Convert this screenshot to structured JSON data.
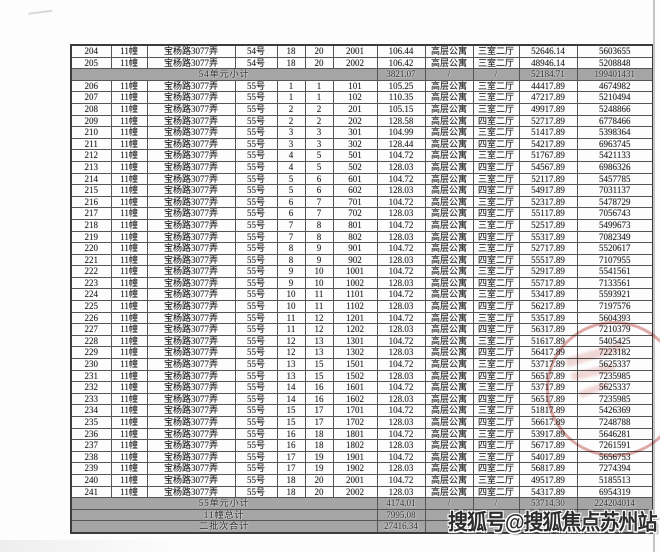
{
  "watermark": "搜狐号@搜狐焦点苏州站",
  "colors": {
    "summary_bg": "#a5a5a5",
    "stamp_red": "#be524a",
    "grid_border": "#555555"
  },
  "table": {
    "rows": [
      {
        "cells": [
          "204",
          "11幢",
          "宝杨路3077弄",
          "54号",
          "18",
          "20",
          "2001",
          "106.44",
          "高层公寓",
          "三室二厅",
          "52646.14",
          "5603655"
        ]
      },
      {
        "cells": [
          "205",
          "11幢",
          "宝杨路3077弄",
          "54号",
          "18",
          "20",
          "2002",
          "106.42",
          "高层公寓",
          "三室二厅",
          "48946.14",
          "5208848"
        ]
      },
      {
        "label": "54单元小计",
        "cells": [
          "3821.07",
          "/",
          "/",
          "52184.71",
          "199401431"
        ]
      },
      {
        "cells": [
          "206",
          "11幢",
          "宝杨路3077弄",
          "55号",
          "1",
          "1",
          "101",
          "105.25",
          "高层公寓",
          "三室二厅",
          "44417.89",
          "4674982"
        ]
      },
      {
        "cells": [
          "207",
          "11幢",
          "宝杨路3077弄",
          "55号",
          "1",
          "1",
          "102",
          "110.35",
          "高层公寓",
          "三室二厅",
          "47217.89",
          "5210494"
        ]
      },
      {
        "cells": [
          "208",
          "11幢",
          "宝杨路3077弄",
          "55号",
          "2",
          "2",
          "201",
          "105.15",
          "高层公寓",
          "三室二厅",
          "49917.89",
          "5248866"
        ]
      },
      {
        "cells": [
          "209",
          "11幢",
          "宝杨路3077弄",
          "55号",
          "2",
          "2",
          "202",
          "128.58",
          "高层公寓",
          "四室二厅",
          "52717.89",
          "6778466"
        ]
      },
      {
        "cells": [
          "210",
          "11幢",
          "宝杨路3077弄",
          "55号",
          "3",
          "3",
          "301",
          "104.99",
          "高层公寓",
          "三室二厅",
          "51417.89",
          "5398364"
        ]
      },
      {
        "cells": [
          "211",
          "11幢",
          "宝杨路3077弄",
          "55号",
          "3",
          "3",
          "302",
          "128.44",
          "高层公寓",
          "四室二厅",
          "54217.89",
          "6963745"
        ]
      },
      {
        "cells": [
          "212",
          "11幢",
          "宝杨路3077弄",
          "55号",
          "4",
          "5",
          "501",
          "104.72",
          "高层公寓",
          "三室二厅",
          "51767.89",
          "5421133"
        ]
      },
      {
        "cells": [
          "213",
          "11幢",
          "宝杨路3077弄",
          "55号",
          "4",
          "5",
          "502",
          "128.03",
          "高层公寓",
          "四室二厅",
          "54567.89",
          "6986326"
        ]
      },
      {
        "cells": [
          "214",
          "11幢",
          "宝杨路3077弄",
          "55号",
          "5",
          "6",
          "601",
          "104.72",
          "高层公寓",
          "三室二厅",
          "52117.89",
          "5457785"
        ]
      },
      {
        "cells": [
          "215",
          "11幢",
          "宝杨路3077弄",
          "55号",
          "5",
          "6",
          "602",
          "128.03",
          "高层公寓",
          "四室二厅",
          "54917.89",
          "7031137"
        ]
      },
      {
        "cells": [
          "216",
          "11幢",
          "宝杨路3077弄",
          "55号",
          "6",
          "7",
          "701",
          "104.72",
          "高层公寓",
          "三室二厅",
          "52317.89",
          "5478729"
        ]
      },
      {
        "cells": [
          "217",
          "11幢",
          "宝杨路3077弄",
          "55号",
          "6",
          "7",
          "702",
          "128.03",
          "高层公寓",
          "四室二厅",
          "55117.89",
          "7056743"
        ]
      },
      {
        "cells": [
          "218",
          "11幢",
          "宝杨路3077弄",
          "55号",
          "7",
          "8",
          "801",
          "104.72",
          "高层公寓",
          "三室二厅",
          "52517.89",
          "5499673"
        ]
      },
      {
        "cells": [
          "219",
          "11幢",
          "宝杨路3077弄",
          "55号",
          "7",
          "8",
          "802",
          "128.03",
          "高层公寓",
          "四室二厅",
          "55317.89",
          "7082349"
        ]
      },
      {
        "cells": [
          "220",
          "11幢",
          "宝杨路3077弄",
          "55号",
          "8",
          "9",
          "901",
          "104.72",
          "高层公寓",
          "三室二厅",
          "52717.89",
          "5520617"
        ]
      },
      {
        "cells": [
          "221",
          "11幢",
          "宝杨路3077弄",
          "55号",
          "8",
          "9",
          "902",
          "128.03",
          "高层公寓",
          "四室二厅",
          "55517.89",
          "7107955"
        ]
      },
      {
        "cells": [
          "222",
          "11幢",
          "宝杨路3077弄",
          "55号",
          "9",
          "10",
          "1001",
          "104.72",
          "高层公寓",
          "三室二厅",
          "52917.89",
          "5541561"
        ]
      },
      {
        "cells": [
          "223",
          "11幢",
          "宝杨路3077弄",
          "55号",
          "9",
          "10",
          "1002",
          "128.03",
          "高层公寓",
          "四室二厅",
          "55717.89",
          "7133561"
        ]
      },
      {
        "cells": [
          "224",
          "11幢",
          "宝杨路3077弄",
          "55号",
          "10",
          "11",
          "1101",
          "104.72",
          "高层公寓",
          "三室二厅",
          "53417.89",
          "5593921"
        ]
      },
      {
        "cells": [
          "225",
          "11幢",
          "宝杨路3077弄",
          "55号",
          "10",
          "11",
          "1102",
          "128.03",
          "高层公寓",
          "四室二厅",
          "56217.89",
          "7197576"
        ]
      },
      {
        "cells": [
          "226",
          "11幢",
          "宝杨路3077弄",
          "55号",
          "11",
          "12",
          "1201",
          "104.72",
          "高层公寓",
          "三室二厅",
          "53517.89",
          "5604393"
        ]
      },
      {
        "cells": [
          "227",
          "11幢",
          "宝杨路3077弄",
          "55号",
          "11",
          "12",
          "1202",
          "128.03",
          "高层公寓",
          "四室二厅",
          "56317.89",
          "7210379"
        ]
      },
      {
        "cells": [
          "228",
          "11幢",
          "宝杨路3077弄",
          "55号",
          "12",
          "13",
          "1301",
          "104.72",
          "高层公寓",
          "三室二厅",
          "51617.89",
          "5405425"
        ]
      },
      {
        "cells": [
          "229",
          "11幢",
          "宝杨路3077弄",
          "55号",
          "12",
          "13",
          "1302",
          "128.03",
          "高层公寓",
          "四室二厅",
          "56417.89",
          "7223182"
        ]
      },
      {
        "cells": [
          "230",
          "11幢",
          "宝杨路3077弄",
          "55号",
          "13",
          "15",
          "1501",
          "104.72",
          "高层公寓",
          "三室二厅",
          "53717.89",
          "5625337"
        ]
      },
      {
        "cells": [
          "231",
          "11幢",
          "宝杨路3077弄",
          "55号",
          "13",
          "15",
          "1502",
          "128.03",
          "高层公寓",
          "四室二厅",
          "56517.89",
          "7235985"
        ]
      },
      {
        "cells": [
          "232",
          "11幢",
          "宝杨路3077弄",
          "55号",
          "14",
          "16",
          "1601",
          "104.72",
          "高层公寓",
          "三室二厅",
          "53717.89",
          "5625337"
        ]
      },
      {
        "cells": [
          "233",
          "11幢",
          "宝杨路3077弄",
          "55号",
          "14",
          "16",
          "1602",
          "128.03",
          "高层公寓",
          "四室二厅",
          "56517.89",
          "7235985"
        ]
      },
      {
        "cells": [
          "234",
          "11幢",
          "宝杨路3077弄",
          "55号",
          "15",
          "17",
          "1701",
          "104.72",
          "高层公寓",
          "三室二厅",
          "51817.89",
          "5426369"
        ]
      },
      {
        "cells": [
          "235",
          "11幢",
          "宝杨路3077弄",
          "55号",
          "15",
          "17",
          "1702",
          "128.03",
          "高层公寓",
          "四室二厅",
          "56617.89",
          "7248788"
        ]
      },
      {
        "cells": [
          "236",
          "11幢",
          "宝杨路3077弄",
          "55号",
          "16",
          "18",
          "1801",
          "104.72",
          "高层公寓",
          "三室二厅",
          "53917.89",
          "5646281"
        ]
      },
      {
        "cells": [
          "237",
          "11幢",
          "宝杨路3077弄",
          "55号",
          "16",
          "18",
          "1802",
          "128.03",
          "高层公寓",
          "四室二厅",
          "56717.89",
          "7261591"
        ]
      },
      {
        "cells": [
          "238",
          "11幢",
          "宝杨路3077弄",
          "55号",
          "17",
          "19",
          "1901",
          "104.72",
          "高层公寓",
          "三室二厅",
          "54017.89",
          "5656753"
        ]
      },
      {
        "cells": [
          "239",
          "11幢",
          "宝杨路3077弄",
          "55号",
          "17",
          "19",
          "1902",
          "128.03",
          "高层公寓",
          "四室二厅",
          "56817.89",
          "7274394"
        ]
      },
      {
        "cells": [
          "240",
          "11幢",
          "宝杨路3077弄",
          "55号",
          "18",
          "20",
          "2001",
          "104.72",
          "高层公寓",
          "三室二厅",
          "49517.89",
          "5185513"
        ]
      },
      {
        "cells": [
          "241",
          "11幢",
          "宝杨路3077弄",
          "55号",
          "18",
          "20",
          "2002",
          "128.03",
          "高层公寓",
          "四室二厅",
          "54317.89",
          "6954319"
        ]
      },
      {
        "label": "55单元小计",
        "cells": [
          "4174.01",
          "/",
          "/",
          "53714.30",
          "224204014"
        ]
      },
      {
        "label": "11幢总计",
        "cells": [
          "7995.08",
          "/",
          "/",
          "",
          ""
        ]
      },
      {
        "label": "二批次合计",
        "cells": [
          "27416.34",
          "/",
          "/",
          "",
          ""
        ]
      }
    ]
  }
}
